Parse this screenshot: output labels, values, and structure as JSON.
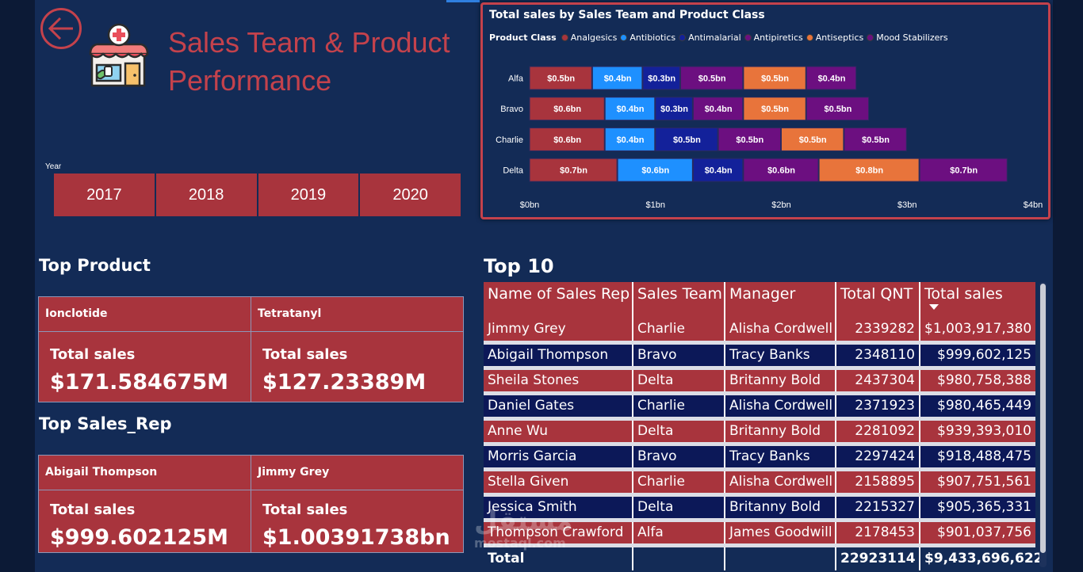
{
  "page": {
    "title": "Sales Team & Product Performance"
  },
  "year_slicer": {
    "label": "Year",
    "years": [
      "2017",
      "2018",
      "2019",
      "2020"
    ]
  },
  "top_product": {
    "heading": "Top Product",
    "cards": [
      {
        "name": "Ionclotide",
        "metric": "Total sales",
        "value": "$171.584675M"
      },
      {
        "name": "Tetratanyl",
        "metric": "Total sales",
        "value": "$127.23389M"
      }
    ]
  },
  "top_sales_rep": {
    "heading": "Top Sales_Rep",
    "cards": [
      {
        "name": "Abigail Thompson",
        "metric": "Total sales",
        "value": "$999.602125M"
      },
      {
        "name": "Jimmy Grey",
        "metric": "Total sales",
        "value": "$1.00391738bn"
      }
    ]
  },
  "colors": {
    "accent": "#c4424c",
    "card": "#a8343d",
    "background": "#132b56",
    "Analgesics": "#a8343d",
    "Antibiotics": "#1e90ff",
    "Antimalarial": "#13219a",
    "Antipiretics": "#6c0f80",
    "Antiseptics": "#e8743b",
    "Mood Stabilizers": "#6c0f80"
  },
  "chart_data": {
    "type": "bar",
    "orientation": "horizontal",
    "stacked": true,
    "title": "Total sales by Sales Team and Product Class",
    "legend_title": "Product Class",
    "legend_position": "top-left",
    "categories": [
      "Alfa",
      "Bravo",
      "Charlie",
      "Delta"
    ],
    "series": [
      {
        "name": "Analgesics",
        "values": [
          0.5,
          0.6,
          0.6,
          0.7
        ],
        "labels": [
          "$0.5bn",
          "$0.6bn",
          "$0.6bn",
          "$0.7bn"
        ]
      },
      {
        "name": "Antibiotics",
        "values": [
          0.4,
          0.4,
          0.4,
          0.6
        ],
        "labels": [
          "$0.4bn",
          "$0.4bn",
          "$0.4bn",
          "$0.6bn"
        ]
      },
      {
        "name": "Antimalarial",
        "values": [
          0.3,
          0.3,
          0.5,
          0.4
        ],
        "labels": [
          "$0.3bn",
          "$0.3bn",
          "$0.5bn",
          "$0.4bn"
        ]
      },
      {
        "name": "Antipiretics",
        "values": [
          0.5,
          0.4,
          0.5,
          0.6
        ],
        "labels": [
          "$0.5bn",
          "$0.4bn",
          "$0.5bn",
          "$0.6bn"
        ]
      },
      {
        "name": "Antiseptics",
        "values": [
          0.5,
          0.5,
          0.5,
          0.8
        ],
        "labels": [
          "$0.5bn",
          "$0.5bn",
          "$0.5bn",
          "$0.8bn"
        ]
      },
      {
        "name": "Mood Stabilizers",
        "values": [
          0.4,
          0.5,
          0.5,
          0.7
        ],
        "labels": [
          "$0.4bn",
          "$0.5bn",
          "$0.5bn",
          "$0.7bn"
        ]
      }
    ],
    "xlim": [
      0,
      4
    ],
    "xticks": [
      0,
      1,
      2,
      3,
      4
    ],
    "xtick_labels": [
      "$0bn",
      "$1bn",
      "$2bn",
      "$3bn",
      "$4bn"
    ],
    "xlabel": "",
    "ylabel": "",
    "grid": false
  },
  "top10": {
    "heading": "Top 10",
    "columns": [
      "Name of Sales Rep",
      "Sales Team",
      "Manager",
      "Total QNT",
      "Total sales"
    ],
    "sorted_by": "Total sales",
    "rows": [
      [
        "Jimmy Grey",
        "Charlie",
        "Alisha Cordwell",
        "2339282",
        "$1,003,917,380"
      ],
      [
        "Abigail Thompson",
        "Bravo",
        "Tracy Banks",
        "2348110",
        "$999,602,125"
      ],
      [
        "Sheila Stones",
        "Delta",
        "Britanny Bold",
        "2437304",
        "$980,758,388"
      ],
      [
        "Daniel Gates",
        "Charlie",
        "Alisha Cordwell",
        "2371923",
        "$980,465,449"
      ],
      [
        "Anne Wu",
        "Delta",
        "Britanny Bold",
        "2281092",
        "$939,393,010"
      ],
      [
        "Morris Garcia",
        "Bravo",
        "Tracy Banks",
        "2297424",
        "$918,488,475"
      ],
      [
        "Stella Given",
        "Charlie",
        "Alisha Cordwell",
        "2158895",
        "$907,751,561"
      ],
      [
        "Jessica Smith",
        "Delta",
        "Britanny Bold",
        "2215327",
        "$905,365,331"
      ],
      [
        "Thompson Crawford",
        "Alfa",
        "James Goodwill",
        "2178453",
        "$901,037,756"
      ]
    ],
    "total": {
      "label": "Total",
      "qnt": "22923114",
      "sales": "$9,433,696,622"
    }
  },
  "watermark": {
    "arabic": "مستقل",
    "latin": "mostaql.com"
  },
  "icons": {
    "back": "back-arrow-icon",
    "logo": "pharmacy-store-icon",
    "sort": "sort-desc-icon"
  }
}
